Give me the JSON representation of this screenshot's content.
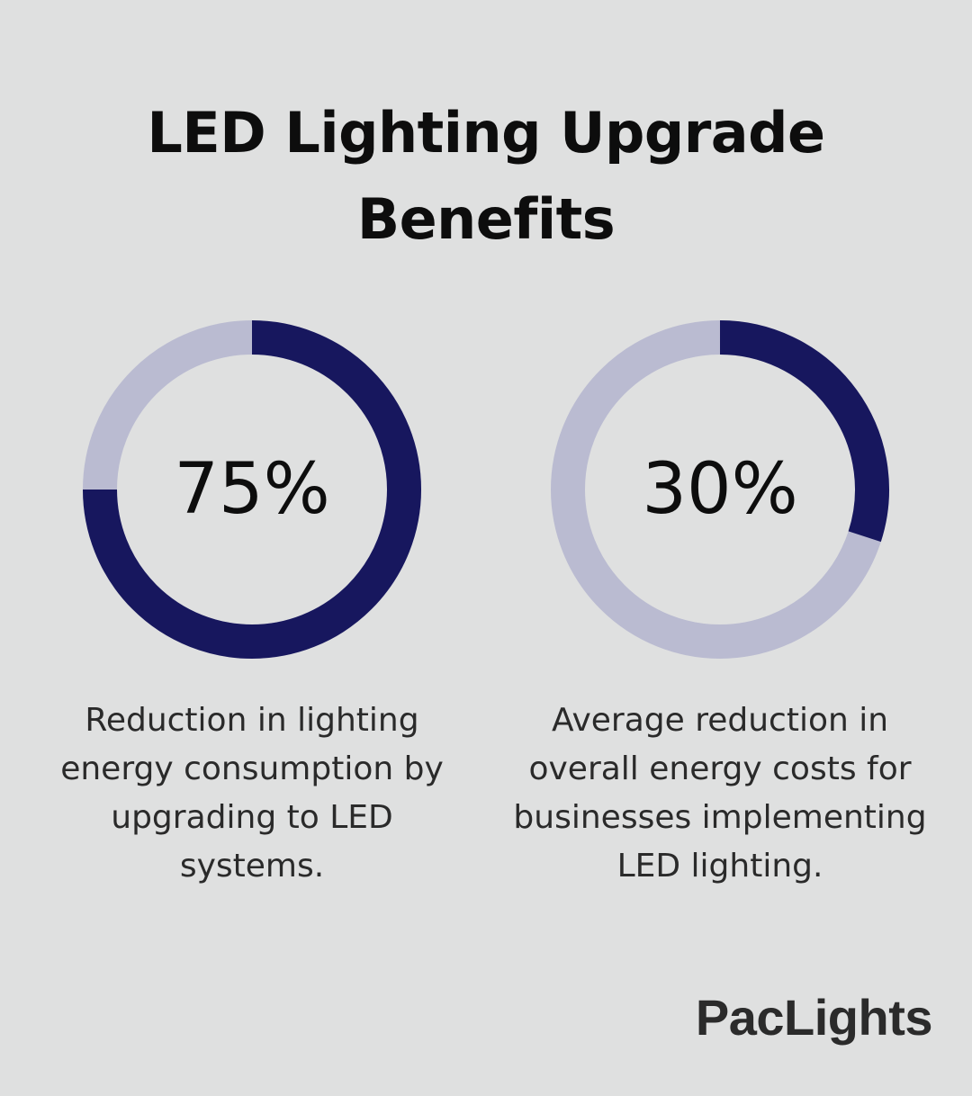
{
  "title": "LED Lighting Upgrade Benefits",
  "brand": "PacLights",
  "colors": {
    "background": "#dfe0e0",
    "filled": "#17175e",
    "track": "#babbd1",
    "text": "#0d0d0d"
  },
  "chart_data": [
    {
      "type": "pie",
      "subtype": "donut",
      "value": 75,
      "max": 100,
      "label": "75%",
      "caption": "Reduction in lighting energy consumption by upgrading to LED systems."
    },
    {
      "type": "pie",
      "subtype": "donut",
      "value": 30,
      "max": 100,
      "label": "30%",
      "caption": "Average reduction in overall energy costs for businesses implementing LED lighting."
    }
  ]
}
